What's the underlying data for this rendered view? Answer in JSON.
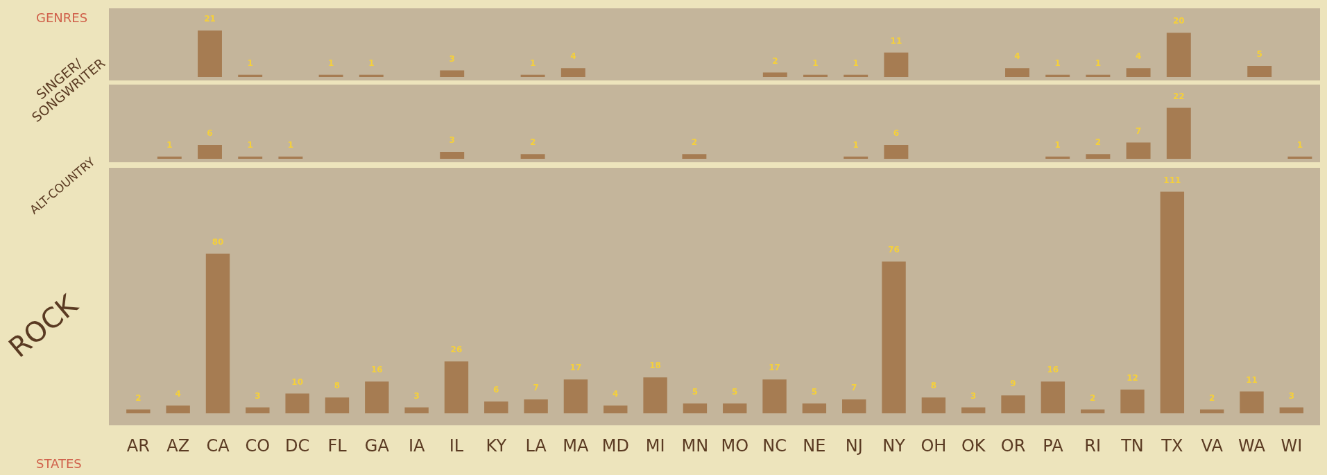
{
  "chart_data": [
    {
      "type": "bar",
      "ylabel": "SINGER/ SONGWRITER",
      "annotations": [
        "GENRES"
      ],
      "categories": [
        "AR",
        "AZ",
        "CA",
        "CO",
        "DC",
        "FL",
        "GA",
        "IA",
        "IL",
        "KY",
        "LA",
        "MA",
        "MD",
        "MI",
        "MN",
        "MO",
        "NC",
        "NE",
        "NJ",
        "NY",
        "OH",
        "OK",
        "OR",
        "PA",
        "RI",
        "TN",
        "TX",
        "VA",
        "WA",
        "WI"
      ],
      "values": [
        null,
        null,
        21,
        1,
        null,
        1,
        1,
        null,
        3,
        null,
        1,
        4,
        null,
        null,
        null,
        null,
        2,
        1,
        1,
        11,
        null,
        null,
        4,
        1,
        1,
        4,
        20,
        null,
        5,
        null
      ],
      "color": "#a67c52",
      "ylim": [
        0,
        31
      ],
      "data_labels": true,
      "tick_labels": false,
      "grid": false,
      "legend": false
    },
    {
      "type": "bar",
      "ylabel": "ALT-COUNTRY",
      "categories": [
        "AR",
        "AZ",
        "CA",
        "CO",
        "DC",
        "FL",
        "GA",
        "IA",
        "IL",
        "KY",
        "LA",
        "MA",
        "MD",
        "MI",
        "MN",
        "MO",
        "NC",
        "NE",
        "NJ",
        "NY",
        "OH",
        "OK",
        "OR",
        "PA",
        "RI",
        "TN",
        "TX",
        "VA",
        "WA",
        "WI"
      ],
      "values": [
        null,
        1,
        6,
        1,
        1,
        null,
        null,
        null,
        3,
        null,
        2,
        null,
        null,
        null,
        2,
        null,
        null,
        null,
        1,
        6,
        null,
        null,
        null,
        1,
        2,
        7,
        22,
        null,
        null,
        1
      ],
      "color": "#a67c52",
      "ylim": [
        0,
        32
      ],
      "data_labels": true,
      "tick_labels": false,
      "grid": false,
      "legend": false
    },
    {
      "type": "bar",
      "ylabel": "ROCK",
      "xlabel": "STATES",
      "categories": [
        "AR",
        "AZ",
        "CA",
        "CO",
        "DC",
        "FL",
        "GA",
        "IA",
        "IL",
        "KY",
        "LA",
        "MA",
        "MD",
        "MI",
        "MN",
        "MO",
        "NC",
        "NE",
        "NJ",
        "NY",
        "OH",
        "OK",
        "OR",
        "PA",
        "RI",
        "TN",
        "TX",
        "VA",
        "WA",
        "WI"
      ],
      "values": [
        2,
        4,
        80,
        3,
        10,
        8,
        16,
        3,
        26,
        6,
        7,
        17,
        4,
        18,
        5,
        5,
        17,
        5,
        7,
        76,
        8,
        3,
        9,
        16,
        2,
        12,
        111,
        2,
        11,
        3
      ],
      "color": "#a67c52",
      "ylim": [
        0,
        123
      ],
      "data_labels": true,
      "tick_labels": "x",
      "grid": false,
      "legend": false
    }
  ]
}
